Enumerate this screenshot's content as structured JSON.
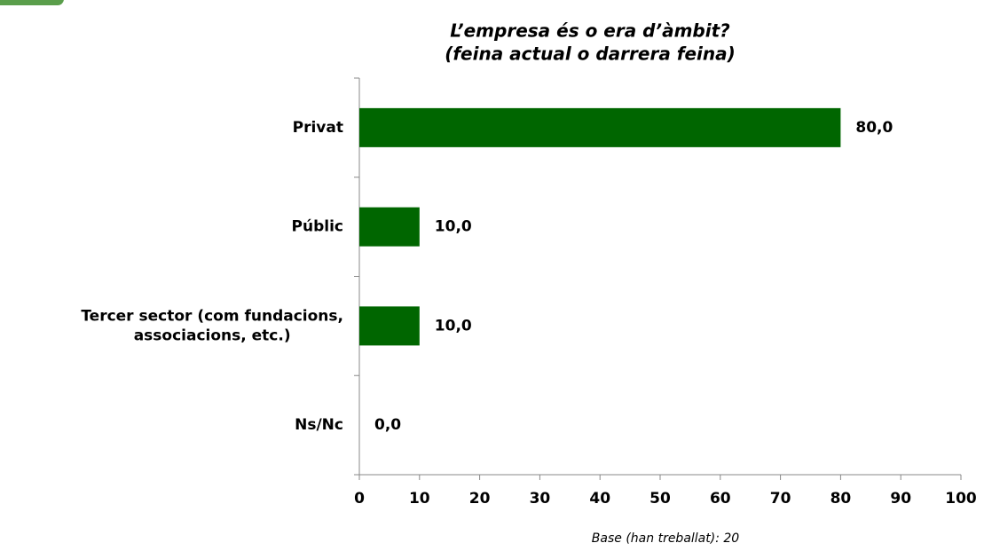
{
  "chart_data": {
    "type": "barh",
    "title": "L’empresa és o era d’àmbit?",
    "subtitle": "(feina actual o darrera feina)",
    "categories": [
      "Privat",
      "Públic",
      "Tercer sector (com fundacions,\nassociacions, etc.)",
      "Ns/Nc"
    ],
    "values": [
      80,
      10,
      10,
      0
    ],
    "value_labels": [
      "80,0",
      "10,0",
      "10,0",
      "0,0"
    ],
    "color": "#006600",
    "xlim": [
      0,
      100
    ],
    "xticks": [
      0,
      10,
      20,
      30,
      40,
      50,
      60,
      70,
      80,
      90,
      100
    ],
    "note": "Base (han treballat): 20"
  }
}
